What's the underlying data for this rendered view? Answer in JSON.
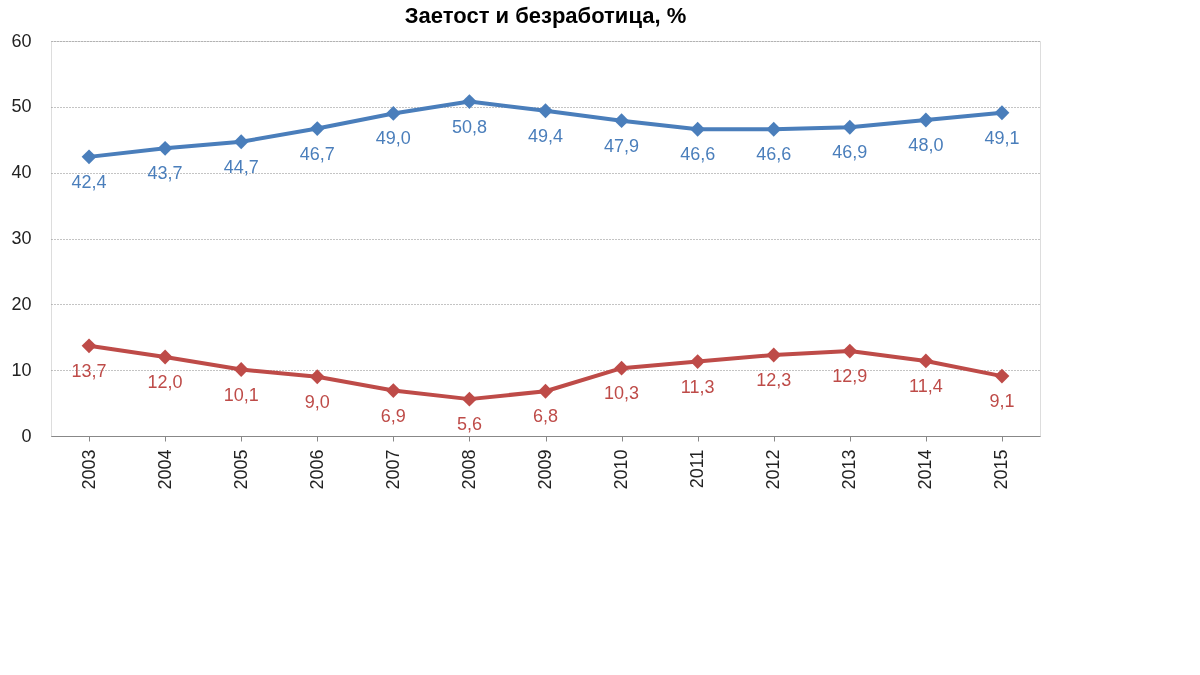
{
  "chart_data": {
    "type": "line",
    "title": "Заетост и безработица, %",
    "categories": [
      "2003",
      "2004",
      "2005",
      "2006",
      "2007",
      "2008",
      "2009",
      "2010",
      "2011",
      "2012",
      "2013",
      "2014",
      "2015"
    ],
    "series": [
      {
        "color": "#4a7ebb",
        "values": [
          42.4,
          43.7,
          44.7,
          46.7,
          49.0,
          50.8,
          49.4,
          47.9,
          46.6,
          46.6,
          46.9,
          48.0,
          49.1
        ],
        "value_labels": [
          "42,4",
          "43,7",
          "44,7",
          "46,7",
          "49,0",
          "50,8",
          "49,4",
          "47,9",
          "46,6",
          "46,6",
          "46,9",
          "48,0",
          "49,1"
        ]
      },
      {
        "color": "#be4b48",
        "values": [
          13.7,
          12.0,
          10.1,
          9.0,
          6.9,
          5.6,
          6.8,
          10.3,
          11.3,
          12.3,
          12.9,
          11.4,
          9.1
        ],
        "value_labels": [
          "13,7",
          "12,0",
          "10,1",
          "9,0",
          "6,9",
          "5,6",
          "6,8",
          "10,3",
          "11,3",
          "12,3",
          "12,9",
          "11,4",
          "9,1"
        ]
      }
    ],
    "ylim": [
      0,
      60
    ],
    "yticks": [
      0,
      10,
      20,
      30,
      40,
      50,
      60
    ],
    "grid": "y",
    "marker": "diamond",
    "line_style": "solid"
  }
}
